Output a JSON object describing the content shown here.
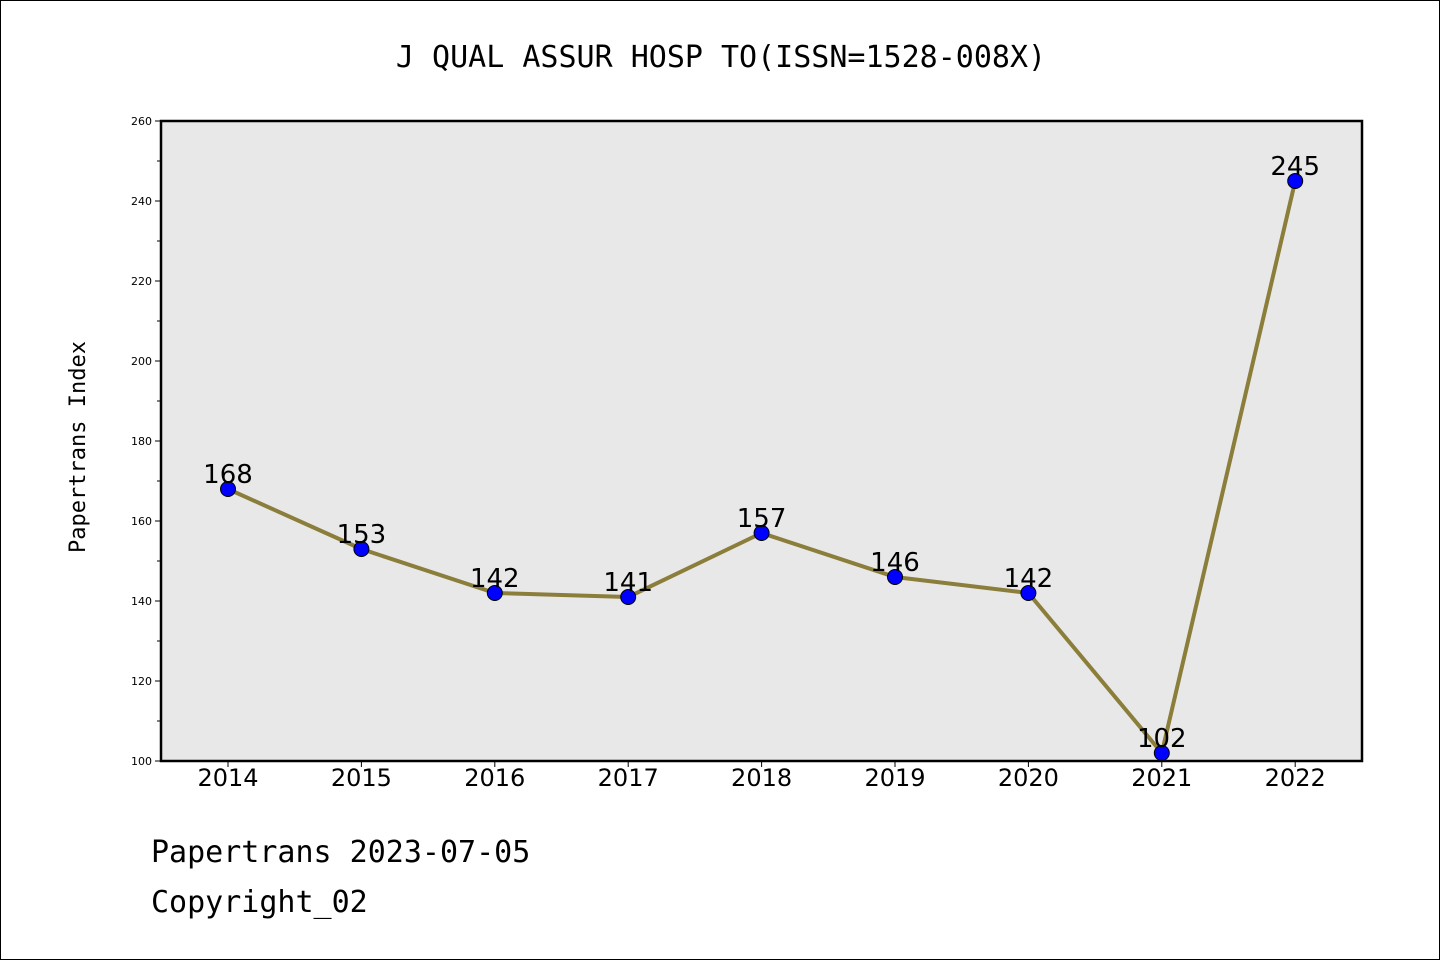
{
  "chart_data": {
    "type": "line",
    "title": "J QUAL ASSUR HOSP TO(ISSN=1528-008X)",
    "xlabel": "",
    "ylabel": "Papertrans Index",
    "x": [
      "2014",
      "2015",
      "2016",
      "2017",
      "2018",
      "2019",
      "2020",
      "2021",
      "2022"
    ],
    "series": [
      {
        "values": [
          168,
          153,
          142,
          141,
          157,
          146,
          142,
          102,
          245
        ]
      }
    ],
    "data_labels": [
      "168",
      "153",
      "142",
      "141",
      "157",
      "146",
      "142",
      "102",
      "245"
    ],
    "ylim": [
      100,
      260
    ],
    "yticks": [
      100,
      120,
      140,
      160,
      180,
      200,
      220,
      240,
      260
    ],
    "grid": false,
    "legend": "none"
  },
  "colors": {
    "line": "#8b7d3a",
    "marker": "#0000ff",
    "plot_bg": "#e8e8e8"
  },
  "footer": {
    "date_line": "Papertrans 2023-07-05",
    "copyright_line": "Copyright_02"
  }
}
